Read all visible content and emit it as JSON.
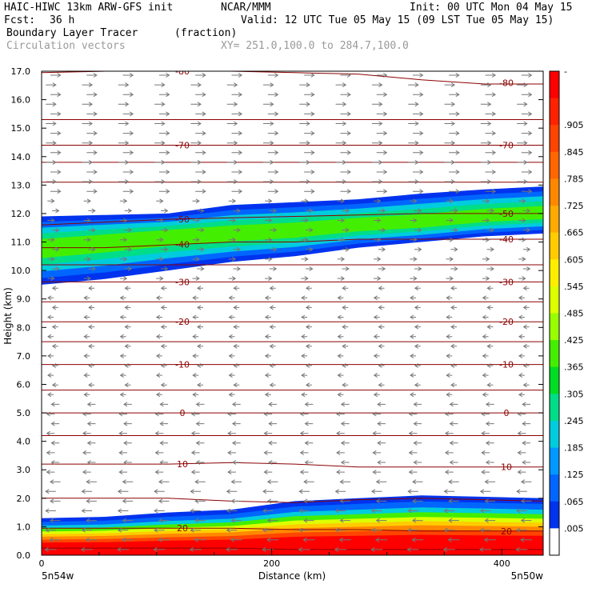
{
  "header": {
    "model": "HAIC-HIWC 13km ARW-GFS init",
    "org": "NCAR/MMM",
    "init": "Init: 00 UTC Mon 04 May 15",
    "fcst_label": "Fcst:",
    "fcst_value": "36 h",
    "valid": "Valid: 12 UTC Tue 05 May 15 (09 LST Tue 05 May 15)",
    "field": "Boundary Layer Tracer",
    "units": "(fraction)",
    "vectors": "Circulation vectors",
    "xy": "XY= 251.0,100.0 to 284.7,100.0"
  },
  "chart_data": {
    "type": "heatmap",
    "xlabel": "Distance (km)",
    "ylabel": "Height (km)",
    "xlim": [
      0,
      436
    ],
    "ylim": [
      0,
      17
    ],
    "x_ticks": [
      0,
      200,
      400
    ],
    "y_ticks": [
      "0.0",
      "1.0",
      "2.0",
      "3.0",
      "4.0",
      "5.0",
      "6.0",
      "7.0",
      "8.0",
      "9.0",
      "10.0",
      "11.0",
      "12.0",
      "13.0",
      "14.0",
      "15.0",
      "16.0",
      "17.0"
    ],
    "endpoints": {
      "left": "5n54w",
      "right": "5n50w"
    },
    "colorbar": {
      "labels": [
        "-",
        ".905",
        ".845",
        ".785",
        ".725",
        ".665",
        ".605",
        ".545",
        ".485",
        ".425",
        ".365",
        ".305",
        ".245",
        ".185",
        ".125",
        ".065",
        ".005"
      ],
      "colors": [
        "#ff0000",
        "#ff2200",
        "#ff4400",
        "#ff6600",
        "#ff8800",
        "#ffaa00",
        "#ffcc00",
        "#ffee00",
        "#ddff00",
        "#99ff00",
        "#44ee00",
        "#00dd22",
        "#00dd88",
        "#00ccdd",
        "#0099ff",
        "#0066ff",
        "#0033ee",
        "#ffffff"
      ]
    },
    "tracer_layers": [
      {
        "name": "upper",
        "top": [
          11.9,
          11.95,
          12.0,
          12.3,
          12.4,
          12.5,
          12.7,
          12.85,
          12.95
        ],
        "bottom": [
          9.5,
          9.7,
          10.0,
          10.3,
          10.5,
          10.8,
          11.0,
          11.2,
          11.3
        ],
        "core": [
          10.8,
          11.0,
          11.2,
          11.3,
          11.4,
          11.6,
          11.7,
          11.9,
          12.0
        ]
      },
      {
        "name": "boundary",
        "top": [
          1.3,
          1.35,
          1.5,
          1.6,
          1.9,
          2.0,
          2.1,
          2.05,
          2.0
        ],
        "x": [
          0,
          55,
          110,
          165,
          220,
          275,
          330,
          385,
          436
        ]
      }
    ],
    "layer_x": [
      0,
      55,
      110,
      165,
      220,
      275,
      330,
      385,
      436
    ],
    "contours": [
      {
        "label": "-80",
        "y": [
          16.95,
          17.0,
          17.0,
          17.0,
          16.95,
          16.9,
          16.7,
          16.55,
          16.55
        ]
      },
      {
        "label": "",
        "y": [
          15.3,
          15.3,
          15.3,
          15.3,
          15.3,
          15.3,
          15.3,
          15.3,
          15.3
        ]
      },
      {
        "label": "-70",
        "y": [
          14.4,
          14.4,
          14.4,
          14.4,
          14.4,
          14.4,
          14.4,
          14.4,
          14.4
        ]
      },
      {
        "label": "",
        "y": [
          13.8,
          13.8,
          13.8,
          13.8,
          13.8,
          13.8,
          13.8,
          13.8,
          13.8
        ]
      },
      {
        "label": "",
        "y": [
          13.1,
          13.1,
          13.1,
          13.1,
          13.1,
          13.1,
          13.1,
          13.1,
          13.1
        ]
      },
      {
        "label": "-50",
        "y": [
          11.6,
          11.7,
          11.8,
          11.85,
          11.9,
          11.95,
          12.0,
          12.0,
          12.0
        ]
      },
      {
        "label": "-40",
        "y": [
          10.8,
          10.8,
          10.9,
          11.0,
          11.0,
          11.1,
          11.1,
          11.1,
          11.1
        ]
      },
      {
        "label": "",
        "y": [
          10.2,
          10.2,
          10.2,
          10.2,
          10.2,
          10.2,
          10.2,
          10.2,
          10.2
        ]
      },
      {
        "label": "-30",
        "y": [
          9.6,
          9.6,
          9.6,
          9.6,
          9.6,
          9.6,
          9.6,
          9.6,
          9.6
        ]
      },
      {
        "label": "",
        "y": [
          8.9,
          8.9,
          8.9,
          8.9,
          8.9,
          8.9,
          8.9,
          8.9,
          8.9
        ]
      },
      {
        "label": "-20",
        "y": [
          8.2,
          8.2,
          8.2,
          8.2,
          8.2,
          8.2,
          8.2,
          8.2,
          8.2
        ]
      },
      {
        "label": "",
        "y": [
          7.5,
          7.5,
          7.5,
          7.5,
          7.5,
          7.5,
          7.5,
          7.5,
          7.5
        ]
      },
      {
        "label": "-10",
        "y": [
          6.7,
          6.7,
          6.7,
          6.7,
          6.7,
          6.7,
          6.7,
          6.7,
          6.7
        ]
      },
      {
        "label": "",
        "y": [
          5.8,
          5.8,
          5.8,
          5.8,
          5.8,
          5.8,
          5.8,
          5.8,
          5.8
        ]
      },
      {
        "label": "0",
        "y": [
          5.0,
          5.0,
          5.0,
          5.0,
          5.0,
          5.0,
          5.0,
          5.0,
          5.0
        ]
      },
      {
        "label": "",
        "y": [
          4.2,
          4.2,
          4.2,
          4.2,
          4.2,
          4.2,
          4.2,
          4.2,
          4.2
        ]
      },
      {
        "label": "10",
        "y": [
          3.2,
          3.2,
          3.2,
          3.25,
          3.2,
          3.1,
          3.1,
          3.1,
          3.1
        ]
      },
      {
        "label": "",
        "y": [
          2.0,
          2.0,
          2.0,
          1.9,
          1.85,
          1.95,
          2.0,
          1.95,
          1.9
        ]
      },
      {
        "label": "20",
        "y": [
          0.95,
          0.95,
          0.95,
          0.95,
          0.9,
          0.9,
          0.85,
          0.85,
          0.85
        ]
      },
      {
        "label": "",
        "y": [
          0.25,
          0.25,
          0.25,
          0.25,
          0.2,
          0.2,
          0.2,
          0.2,
          0.2
        ]
      }
    ],
    "wind_profile": [
      {
        "z_max": 0.7,
        "u": -1.0
      },
      {
        "z_max": 2.6,
        "u": -0.9
      },
      {
        "z_max": 5.5,
        "u": -0.7
      },
      {
        "z_max": 9.6,
        "u": -0.5
      },
      {
        "z_max": 12.6,
        "u": 0.6
      },
      {
        "z_max": 17.0,
        "u": 0.9
      }
    ]
  }
}
